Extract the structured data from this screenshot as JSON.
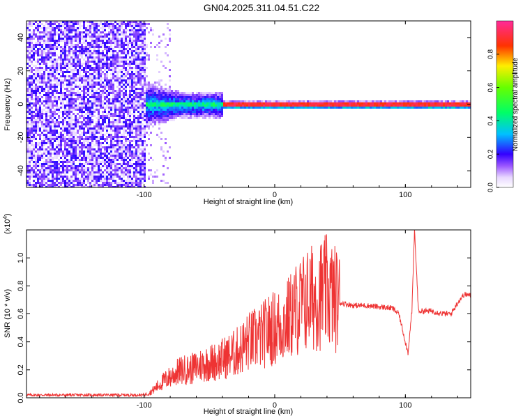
{
  "title": "GN04.2025.311.04.51.C22",
  "colors": {
    "signal": "#ee3333",
    "frame": "#000000"
  },
  "chart_data": [
    {
      "type": "heatmap",
      "name": "spectrogram",
      "xlabel": "Height of straight line (km)",
      "ylabel": "Frequency (Hz)",
      "xlim": [
        -190,
        150
      ],
      "ylim": [
        -50,
        50
      ],
      "xticks": [
        -100,
        0,
        100
      ],
      "yticks": [
        -40,
        -20,
        0,
        20,
        40
      ],
      "xtick_labels": [
        "-100",
        "0",
        "100"
      ],
      "ytick_labels": [
        "-40",
        "-20",
        "0",
        "20",
        "40"
      ],
      "description_regions": [
        {
          "x_range": [
            -190,
            -100
          ],
          "freq_range": [
            -50,
            50
          ],
          "amplitude": 0.15
        },
        {
          "x_range": [
            -100,
            -40
          ],
          "freq_range": [
            -8,
            8
          ],
          "amplitude": 0.4
        },
        {
          "x_range": [
            -40,
            150
          ],
          "freq_range": [
            -1,
            1
          ],
          "amplitude": 0.9
        }
      ],
      "colorbar": {
        "label": "Normalized spectral amplitude",
        "range": [
          0,
          1
        ],
        "ticks": [
          0.0,
          0.2,
          0.4,
          0.6,
          0.8
        ],
        "tick_labels": [
          "0.0",
          "0.2",
          "0.4",
          "0.6",
          "0.8"
        ]
      }
    },
    {
      "type": "line",
      "name": "snr",
      "xlabel": "Height of straight line (km)",
      "ylabel": "SNR (10 * v/v)",
      "scale_note": "(x10",
      "scale_exp": "4",
      "scale_close": ")",
      "xlim": [
        -190,
        150
      ],
      "ylim": [
        0,
        1.2
      ],
      "xticks": [
        -100,
        0,
        100
      ],
      "yticks": [
        0.0,
        0.2,
        0.4,
        0.6,
        0.8,
        1.0
      ],
      "xtick_labels": [
        "-100",
        "0",
        "100"
      ],
      "ytick_labels": [
        "0.0",
        "0.2",
        "0.4",
        "0.6",
        "0.8",
        "1.0"
      ],
      "series": [
        {
          "name": "SNR",
          "x": [
            -190,
            -170,
            -150,
            -130,
            -110,
            -100,
            -95,
            -90,
            -85,
            -80,
            -75,
            -70,
            -65,
            -60,
            -55,
            -50,
            -45,
            -40,
            -35,
            -30,
            -25,
            -20,
            -15,
            -10,
            -5,
            0,
            5,
            10,
            15,
            20,
            25,
            30,
            35,
            40,
            45,
            50,
            60,
            70,
            80,
            90,
            95,
            100,
            102,
            105,
            107,
            110,
            120,
            130,
            135,
            140,
            145,
            150
          ],
          "values": [
            0.02,
            0.02,
            0.02,
            0.02,
            0.02,
            0.02,
            0.04,
            0.08,
            0.12,
            0.15,
            0.18,
            0.2,
            0.2,
            0.22,
            0.24,
            0.25,
            0.26,
            0.28,
            0.3,
            0.32,
            0.36,
            0.4,
            0.42,
            0.44,
            0.48,
            0.5,
            0.52,
            0.56,
            0.62,
            0.66,
            0.7,
            0.72,
            0.74,
            0.76,
            0.72,
            0.68,
            0.66,
            0.66,
            0.65,
            0.64,
            0.6,
            0.4,
            0.32,
            0.62,
            1.2,
            0.62,
            0.62,
            0.6,
            0.6,
            0.68,
            0.74,
            0.73
          ]
        }
      ]
    }
  ]
}
